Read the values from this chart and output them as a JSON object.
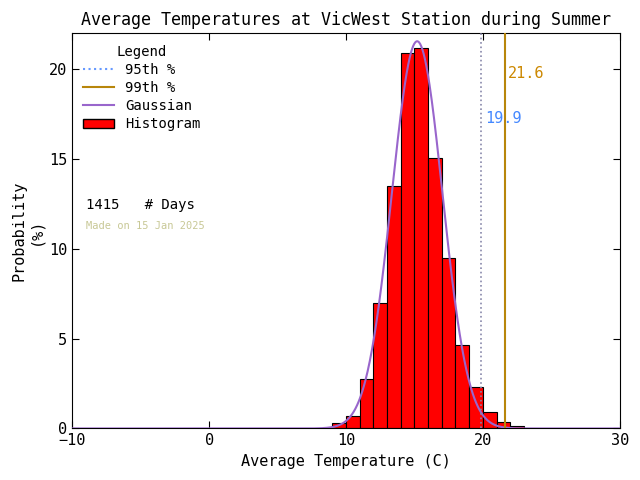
{
  "title": "Average Temperatures at VicWest Station during Summer",
  "xlabel": "Average Temperature (C)",
  "ylabel": "Probability\n(%)",
  "xlim": [
    -10,
    30
  ],
  "ylim": [
    0,
    22
  ],
  "yticks": [
    0,
    5,
    10,
    15,
    20
  ],
  "xticks": [
    -10,
    0,
    10,
    20,
    30
  ],
  "bin_edges": [
    9,
    10,
    11,
    12,
    13,
    14,
    15,
    16,
    17,
    18,
    19,
    20,
    21,
    22
  ],
  "bin_heights": [
    0.28,
    0.71,
    2.76,
    7.0,
    13.52,
    20.92,
    21.2,
    15.09,
    9.5,
    4.65,
    2.33,
    0.92,
    0.35,
    0.14
  ],
  "n_days": 1415,
  "mean": 15.2,
  "std": 1.85,
  "percentile_95": 19.9,
  "percentile_99": 21.6,
  "bar_color": "#ff0000",
  "bar_edge_color": "#000000",
  "gaussian_color": "#9966cc",
  "p95_color": "#6699ff",
  "p95_dot_color": "#8888aa",
  "p99_line_color": "#b8860b",
  "p99_text_color": "#cc8800",
  "p95_text_color": "#4488ff",
  "watermark_color": "#c8c896",
  "watermark_text": "Made on 15 Jan 2025",
  "background_color": "#ffffff",
  "title_fontsize": 12,
  "axis_fontsize": 11,
  "legend_fontsize": 10,
  "annotation_fontsize": 11
}
